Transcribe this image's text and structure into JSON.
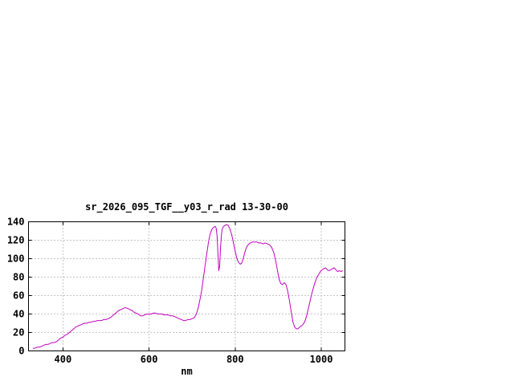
{
  "chart_data": {
    "type": "line",
    "title": "sr_2026_095_TGF__y03_r_rad 13-30-00",
    "xlabel": "nm",
    "ylabel": "",
    "x_ticks": [
      400,
      600,
      800,
      1000
    ],
    "y_ticks": [
      0,
      20,
      40,
      60,
      80,
      100,
      120,
      140
    ],
    "xlim": [
      320,
      1055
    ],
    "ylim": [
      0,
      140
    ],
    "grid": true,
    "legend": "none",
    "line_color": "#c000c0",
    "series": [
      {
        "name": "r_rad",
        "x": [
          330,
          335,
          340,
          345,
          350,
          355,
          360,
          365,
          370,
          375,
          380,
          385,
          390,
          395,
          400,
          405,
          410,
          415,
          420,
          425,
          430,
          435,
          440,
          445,
          450,
          455,
          460,
          465,
          470,
          475,
          480,
          485,
          490,
          495,
          500,
          505,
          510,
          515,
          520,
          525,
          530,
          535,
          540,
          545,
          550,
          555,
          560,
          565,
          570,
          575,
          580,
          585,
          590,
          595,
          600,
          605,
          610,
          615,
          620,
          625,
          630,
          635,
          640,
          645,
          650,
          655,
          660,
          665,
          670,
          675,
          680,
          685,
          690,
          695,
          700,
          705,
          710,
          715,
          718,
          722,
          726,
          730,
          734,
          738,
          742,
          746,
          750,
          754,
          756,
          758,
          760,
          762,
          764,
          766,
          768,
          770,
          773,
          776,
          780,
          784,
          788,
          792,
          796,
          800,
          804,
          808,
          812,
          815,
          818,
          822,
          826,
          830,
          835,
          840,
          845,
          850,
          855,
          860,
          865,
          870,
          875,
          880,
          885,
          890,
          894,
          898,
          902,
          906,
          910,
          914,
          918,
          922,
          926,
          930,
          934,
          938,
          942,
          946,
          950,
          954,
          958,
          962,
          966,
          970,
          974,
          978,
          982,
          986,
          990,
          994,
          998,
          1002,
          1006,
          1010,
          1014,
          1018,
          1022,
          1026,
          1030,
          1034,
          1038,
          1042,
          1046,
          1050
        ],
        "y": [
          3,
          3,
          4,
          4,
          5,
          6,
          7,
          7,
          8,
          9,
          9,
          10,
          12,
          14,
          15,
          17,
          18,
          20,
          22,
          24,
          26,
          27,
          28,
          29,
          30,
          30,
          31,
          31,
          32,
          32,
          33,
          33,
          33,
          34,
          34,
          35,
          36,
          38,
          40,
          42,
          44,
          45,
          46,
          47,
          46,
          45,
          44,
          42,
          41,
          40,
          38,
          38,
          39,
          40,
          40,
          40,
          41,
          41,
          40,
          40,
          40,
          39,
          39,
          39,
          38,
          38,
          37,
          36,
          35,
          34,
          33,
          33,
          34,
          34,
          35,
          36,
          40,
          48,
          55,
          65,
          78,
          92,
          105,
          118,
          127,
          132,
          134,
          135,
          133,
          125,
          105,
          87,
          92,
          112,
          126,
          132,
          135,
          136,
          137,
          136,
          132,
          126,
          117,
          108,
          100,
          96,
          94,
          95,
          99,
          106,
          112,
          115,
          117,
          118,
          118,
          118,
          117,
          117,
          116,
          117,
          116,
          115,
          112,
          106,
          98,
          88,
          78,
          73,
          72,
          74,
          72,
          65,
          55,
          43,
          32,
          26,
          24,
          24,
          26,
          27,
          29,
          32,
          38,
          46,
          54,
          62,
          69,
          75,
          80,
          83,
          86,
          88,
          89,
          90,
          88,
          87,
          88,
          89,
          90,
          88,
          86,
          87,
          86,
          87
        ]
      }
    ]
  }
}
